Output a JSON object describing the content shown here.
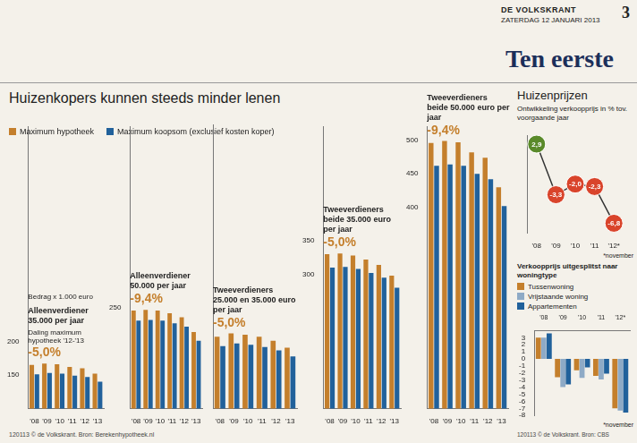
{
  "header": {
    "newspaper": "DE VOLKSKRANT",
    "date": "ZATERDAG 12 JANUARI 2013",
    "page": "3",
    "section": "Ten eerste"
  },
  "title": "Huizenkopers kunnen steeds minder lenen",
  "source": "120113 © de Volkskrant. Bron: Berekenhypotheek.nl",
  "chart_data": [
    {
      "type": "bar",
      "title": "Alleenverdiener",
      "subtitle": "35.000 per jaar",
      "ylabel": "Bedrag x 1.000 euro",
      "note": "Daling maximum hypotheek '12-'13",
      "annotation": "-5,0%",
      "categories": [
        "'08",
        "'09",
        "'10",
        "'11",
        "'12",
        "'13"
      ],
      "series": [
        {
          "name": "Maximum hypotheek",
          "color": "#c47f2c",
          "values": [
            165,
            167,
            166,
            162,
            160,
            152
          ]
        },
        {
          "name": "Maximum koopsom (exclusief kosten koper)",
          "color": "#21619b",
          "values": [
            151,
            153,
            152,
            149,
            147,
            140
          ]
        }
      ],
      "ylim": [
        100,
        520
      ],
      "yticks": [
        150,
        200
      ],
      "grid": false,
      "legend": "top-left"
    },
    {
      "type": "bar",
      "title": "Alleenverdiener",
      "subtitle": "50.000 per jaar",
      "annotation": "-9,4%",
      "categories": [
        "'08",
        "'09",
        "'10",
        "'11",
        "'12",
        "'13"
      ],
      "series": [
        {
          "name": "Maximum hypotheek",
          "color": "#c47f2c",
          "values": [
            246,
            247,
            246,
            242,
            236,
            214
          ]
        },
        {
          "name": "Maximum koopsom (exclusief kosten koper)",
          "color": "#21619b",
          "values": [
            231,
            232,
            231,
            227,
            222,
            201
          ]
        }
      ],
      "ylim": [
        100,
        520
      ],
      "yticks": [
        250
      ],
      "grid": false
    },
    {
      "type": "bar",
      "title": "Tweeverdieners",
      "subtitle": "25.000 en 35.000 euro per jaar",
      "annotation": "-5,0%",
      "categories": [
        "'08",
        "'09",
        "'10",
        "'11",
        "'12",
        "'13"
      ],
      "series": [
        {
          "name": "Maximum hypotheek",
          "color": "#c47f2c",
          "values": [
            206,
            211,
            209,
            206,
            200,
            190
          ]
        },
        {
          "name": "Maximum koopsom (exclusief kosten koper)",
          "color": "#21619b",
          "values": [
            192,
            196,
            194,
            191,
            186,
            177
          ]
        }
      ],
      "ylim": [
        100,
        520
      ],
      "grid": false,
      "tick_labels": "x"
    },
    {
      "type": "bar",
      "title": "Tweeverdieners",
      "subtitle": "beide 35.000 euro per jaar",
      "annotation": "-5,0%",
      "categories": [
        "'08",
        "'09",
        "'10",
        "'11",
        "'12",
        "'13"
      ],
      "series": [
        {
          "name": "Maximum hypotheek",
          "color": "#c47f2c",
          "values": [
            330,
            331,
            328,
            322,
            314,
            298
          ]
        },
        {
          "name": "Maximum koopsom (exclusief kosten koper)",
          "color": "#21619b",
          "values": [
            310,
            311,
            308,
            302,
            295,
            280
          ]
        }
      ],
      "ylim": [
        100,
        520
      ],
      "yticks": [
        300,
        350
      ],
      "grid": false
    },
    {
      "type": "bar",
      "title": "Tweeverdieners",
      "subtitle": "beide 50.000 euro per jaar",
      "annotation": "-9,4%",
      "categories": [
        "'08",
        "'09",
        "'10",
        "'11",
        "'12",
        "'13"
      ],
      "series": [
        {
          "name": "Maximum hypotheek",
          "color": "#c47f2c",
          "values": [
            496,
            499,
            497,
            482,
            474,
            430
          ]
        },
        {
          "name": "Maximum koopsom (exclusief kosten koper)",
          "color": "#21619b",
          "values": [
            462,
            464,
            462,
            450,
            442,
            402
          ]
        }
      ],
      "ylim": [
        100,
        520
      ],
      "yticks": [
        400,
        450,
        500
      ],
      "grid": false
    },
    {
      "type": "line",
      "title": "Huizenprijzen",
      "subtitle": "Ontwikkeling verkoopprijs in % tov. voorgaande jaar",
      "note": "*november",
      "categories": [
        "'08",
        "'09",
        "'10",
        "'11",
        "'12*"
      ],
      "values": [
        2.9,
        -3.3,
        -2.0,
        -2.3,
        -6.8
      ],
      "value_labels": [
        "2,9",
        "-3,3",
        "-2,0",
        "-2,3",
        "-6,8"
      ],
      "color": "#333333",
      "colors": [
        "#5a8a2a",
        "#d9442b",
        "#d9442b",
        "#d9442b",
        "#d9442b"
      ],
      "marker": "circle",
      "line_style": "solid",
      "ylim": [
        -8,
        4
      ],
      "grid": false,
      "tick_labels": "x",
      "data_labels": true
    },
    {
      "type": "bar",
      "title": "Verkoopprijs uitgesplitst naar woningtype",
      "note": "*november",
      "source": "120113 © de Volkskrant. Bron: CBS",
      "categories": [
        "'08",
        "'09",
        "'10",
        "'11",
        "'12*"
      ],
      "series": [
        {
          "name": "Tussenwoning",
          "color": "#c47f2c",
          "values": [
            3.0,
            -2.6,
            -1.6,
            -2.4,
            -7.0
          ]
        },
        {
          "name": "Vrijstaande woning",
          "color": "#8eaac6",
          "values": [
            3.0,
            -4.0,
            -2.7,
            -2.9,
            -7.3
          ]
        },
        {
          "name": "Appartementen",
          "color": "#21619b",
          "values": [
            3.6,
            -3.6,
            -1.2,
            -2.1,
            -7.6
          ]
        }
      ],
      "ylim": [
        -8,
        4
      ],
      "yticks": [
        3,
        2,
        1,
        0,
        -1,
        -2,
        -3,
        -4,
        -5,
        -6,
        -7,
        -8
      ],
      "grid": false,
      "legend": "top-left"
    }
  ]
}
